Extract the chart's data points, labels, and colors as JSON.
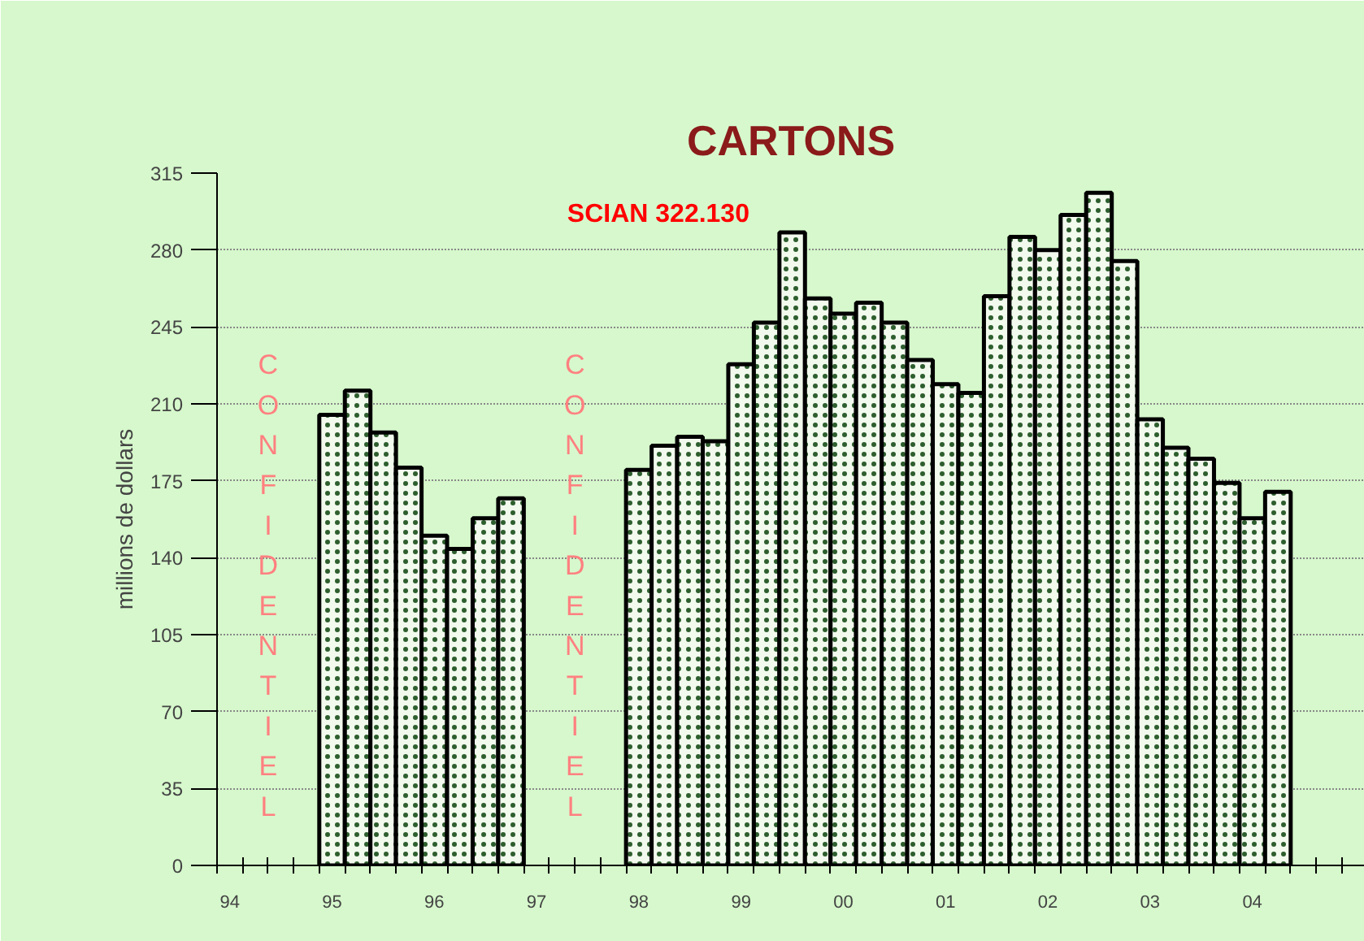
{
  "chart_data": {
    "type": "bar",
    "title": "CARTONS",
    "ylabel": "millions de dollars",
    "annotations": [
      "CONFIDENTIEL",
      "CONFIDENTIEL",
      "SCIAN 322.130"
    ],
    "categories": [
      "94",
      null,
      null,
      null,
      "95",
      null,
      null,
      null,
      "96",
      null,
      null,
      null,
      "97",
      null,
      null,
      null,
      "98",
      null,
      null,
      null,
      "99",
      null,
      null,
      null,
      "00",
      null,
      null,
      null,
      "01",
      null,
      null,
      null,
      "02",
      null,
      null,
      null,
      "03",
      null,
      null,
      null,
      "04",
      null,
      null,
      null
    ],
    "values": [
      null,
      null,
      null,
      null,
      205,
      216,
      197,
      181,
      150,
      144,
      158,
      167,
      null,
      null,
      null,
      null,
      180,
      191,
      195,
      193,
      228,
      247,
      288,
      258,
      251,
      256,
      247,
      230,
      219,
      215,
      259,
      286,
      280,
      296,
      306,
      275,
      203,
      190,
      185,
      174,
      158,
      170,
      null,
      null
    ],
    "color": "#f2faee",
    "ylim": [
      0,
      315
    ],
    "yticks": [
      0,
      35,
      70,
      105,
      140,
      175,
      210,
      245,
      280,
      315
    ],
    "grid": "y"
  }
}
